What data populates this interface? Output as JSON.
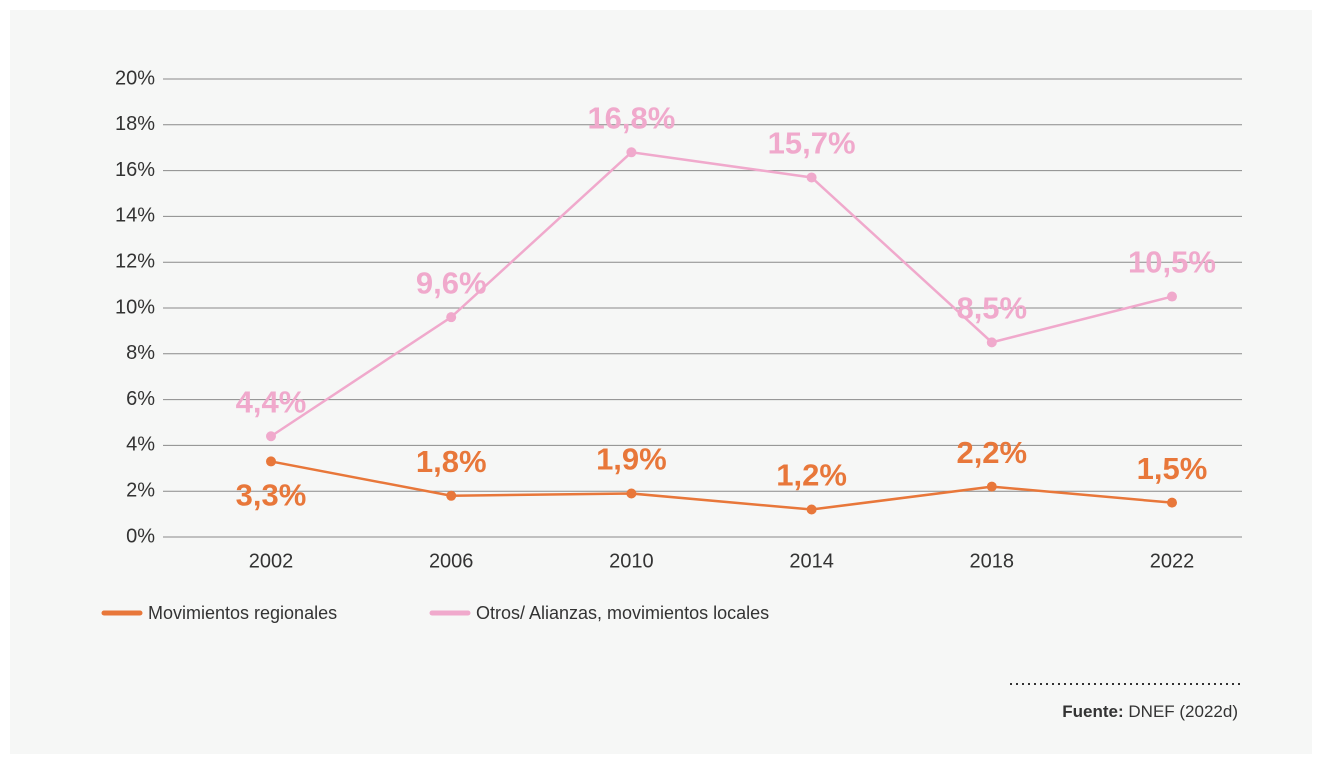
{
  "chart_data": {
    "type": "line",
    "categories": [
      "2002",
      "2006",
      "2010",
      "2014",
      "2018",
      "2022"
    ],
    "series": [
      {
        "name": "Movimientos regionales",
        "color": "#e8773a",
        "values": [
          3.3,
          1.8,
          1.9,
          1.2,
          2.2,
          1.5
        ],
        "value_labels": [
          "3,3%",
          "1,8%",
          "1,9%",
          "1,2%",
          "2,2%",
          "1,5%"
        ]
      },
      {
        "name": "Otros/ Alianzas, movimientos locales",
        "color": "#f0a9cc",
        "values": [
          4.4,
          9.6,
          16.8,
          15.7,
          8.5,
          10.5
        ],
        "value_labels": [
          "4,4%",
          "9,6%",
          "16,8%",
          "15,7%",
          "8,5%",
          "10,5%"
        ]
      }
    ],
    "ylim": [
      0,
      20
    ],
    "yticks": [
      {
        "value": 0,
        "label": "0%"
      },
      {
        "value": 2,
        "label": "2%"
      },
      {
        "value": 4,
        "label": "4%"
      },
      {
        "value": 6,
        "label": "6%"
      },
      {
        "value": 8,
        "label": "8%"
      },
      {
        "value": 10,
        "label": "10%"
      },
      {
        "value": 12,
        "label": "12%"
      },
      {
        "value": 14,
        "label": "14%"
      },
      {
        "value": 16,
        "label": "16%"
      },
      {
        "value": 18,
        "label": "18%"
      },
      {
        "value": 20,
        "label": "20%"
      }
    ],
    "grid": true,
    "legend": "bottom-left",
    "source_label": "Fuente:",
    "source": "DNEF (2022d)"
  }
}
